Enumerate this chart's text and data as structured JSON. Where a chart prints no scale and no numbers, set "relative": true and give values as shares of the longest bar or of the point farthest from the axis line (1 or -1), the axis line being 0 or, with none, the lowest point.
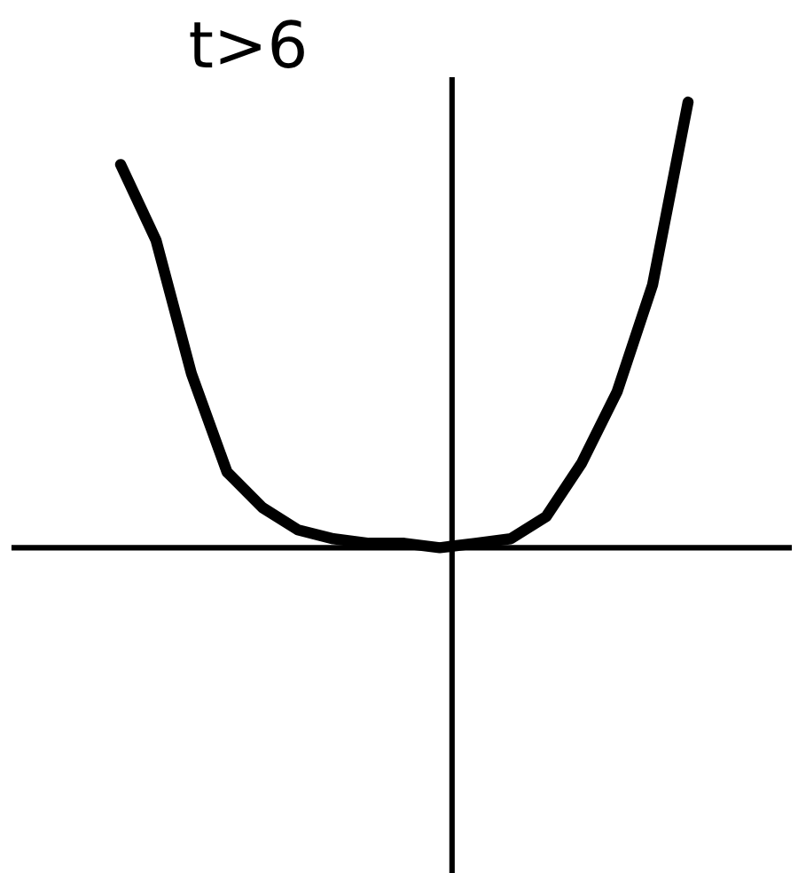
{
  "chart_data": {
    "type": "line",
    "title": "t>6",
    "relative": true,
    "categories": [
      null,
      null,
      null,
      null,
      null,
      null,
      null,
      null,
      null,
      null,
      null,
      null,
      null,
      null,
      null,
      null,
      null
    ],
    "series": [
      {
        "color": "#000000",
        "values": [
          0.86,
          0.69,
          0.39,
          0.17,
          0.09,
          0.04,
          0.02,
          0.01,
          0.01,
          0.0,
          0.01,
          0.02,
          0.07,
          0.19,
          0.35,
          0.59,
          1.0
        ]
      }
    ]
  }
}
